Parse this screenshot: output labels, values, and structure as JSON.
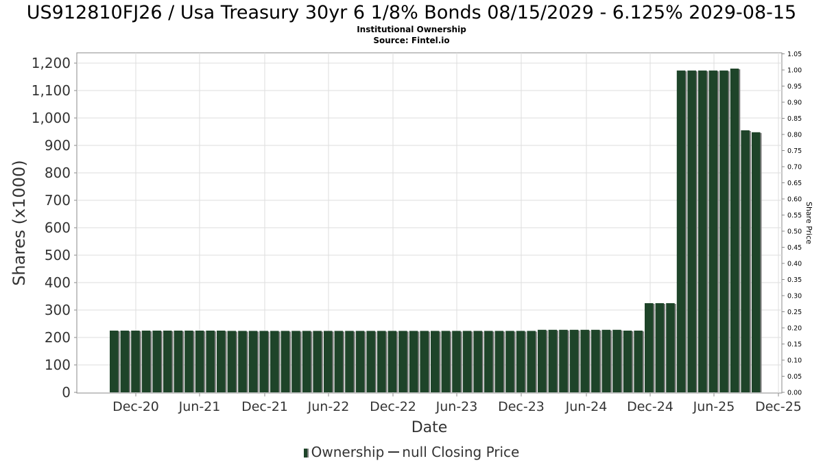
{
  "header": {
    "title": "US912810FJ26 / Usa Treasury 30yr 6 1/8% Bonds 08/15/2029 - 6.125% 2029-08-15",
    "subtitle": "Institutional Ownership",
    "source": "Source: Fintel.io"
  },
  "legend": {
    "ownership": "Ownership",
    "closing_price": "null Closing Price"
  },
  "colors": {
    "bar": "#1e4429",
    "bar_shadow": "#7d7d7d",
    "grid": "#dddddd",
    "axis": "#888888"
  },
  "chart_data": {
    "type": "bar",
    "xlabel": "Date",
    "ylabel": "Shares (x1000)",
    "y2label": "Share Price",
    "ylim": [
      0,
      1250
    ],
    "y2lim": [
      0,
      1.05
    ],
    "yticks": [
      "0",
      "100",
      "200",
      "300",
      "400",
      "500",
      "600",
      "700",
      "800",
      "900",
      "1,000",
      "1,100",
      "1,200"
    ],
    "y2ticks": [
      "0.00",
      "0.05",
      "0.10",
      "0.15",
      "0.20",
      "0.25",
      "0.30",
      "0.35",
      "0.40",
      "0.45",
      "0.50",
      "0.55",
      "0.60",
      "0.65",
      "0.70",
      "0.75",
      "0.80",
      "0.85",
      "0.90",
      "0.95",
      "1.00",
      "1.05"
    ],
    "xticks": [
      "Dec-20",
      "Jun-21",
      "Dec-21",
      "Jun-22",
      "Dec-22",
      "Jun-23",
      "Dec-23",
      "Jun-24",
      "Dec-24",
      "Jun-25",
      "Dec-25"
    ],
    "grid": true,
    "legend_position": "bottom",
    "series": [
      {
        "name": "Ownership",
        "values": [
          225,
          225,
          225,
          225,
          225,
          225,
          225,
          225,
          225,
          225,
          225,
          224,
          224,
          224,
          224,
          224,
          224,
          224,
          224,
          224,
          224,
          224,
          224,
          224,
          224,
          224,
          224,
          224,
          224,
          224,
          224,
          224,
          224,
          224,
          224,
          224,
          224,
          224,
          224,
          224,
          228,
          228,
          228,
          228,
          228,
          228,
          228,
          228,
          225,
          225,
          325,
          325,
          325,
          1173,
          1173,
          1173,
          1173,
          1173,
          1180,
          955,
          948
        ]
      }
    ]
  }
}
